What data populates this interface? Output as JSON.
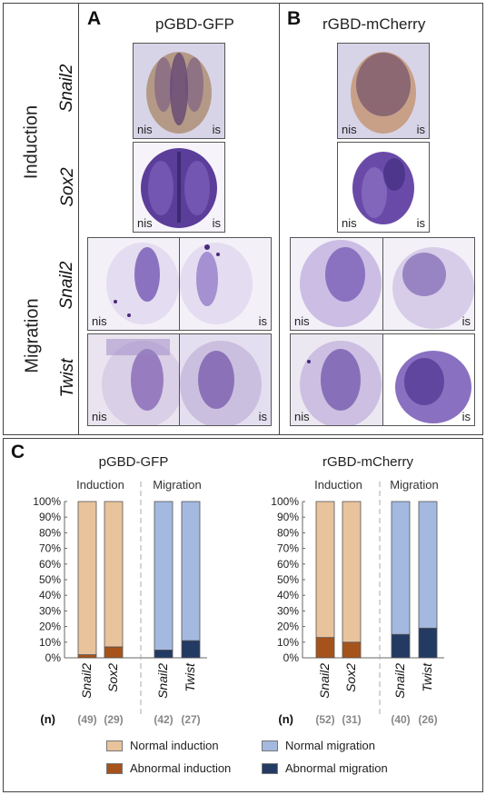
{
  "panels": {
    "A": {
      "letter": "A",
      "title": "pGBD-GFP"
    },
    "B": {
      "letter": "B",
      "title": "rGBD-mCherry"
    },
    "C": {
      "letter": "C"
    }
  },
  "rows": {
    "induction": "Induction",
    "migration": "Migration",
    "snail2": "Snail2",
    "sox2": "Sox2",
    "twist": "Twist"
  },
  "side_tags": {
    "nis": "nis",
    "is": "is"
  },
  "chart_data": [
    {
      "type": "bar",
      "title": "pGBD-GFP",
      "groups": [
        "Induction",
        "Migration"
      ],
      "categories": [
        "Snail2",
        "Sox2",
        "Snail2",
        "Twist"
      ],
      "n": [
        "(49)",
        "(29)",
        "(42)",
        "(27)"
      ],
      "series": [
        {
          "name": "Abnormal induction",
          "values": [
            2,
            7,
            null,
            null
          ]
        },
        {
          "name": "Normal induction",
          "values": [
            98,
            93,
            null,
            null
          ]
        },
        {
          "name": "Abnormal migration",
          "values": [
            null,
            null,
            5,
            11
          ]
        },
        {
          "name": "Normal migration",
          "values": [
            null,
            null,
            95,
            89
          ]
        }
      ],
      "ylim": [
        0,
        100
      ],
      "yticks": [
        "0%",
        "10%",
        "20%",
        "30%",
        "40%",
        "50%",
        "60%",
        "70%",
        "80%",
        "90%",
        "100%"
      ]
    },
    {
      "type": "bar",
      "title": "rGBD-mCherry",
      "groups": [
        "Induction",
        "Migration"
      ],
      "categories": [
        "Snail2",
        "Sox2",
        "Snail2",
        "Twist"
      ],
      "n": [
        "(52)",
        "(31)",
        "(40)",
        "(26)"
      ],
      "series": [
        {
          "name": "Abnormal induction",
          "values": [
            13,
            10,
            null,
            null
          ]
        },
        {
          "name": "Normal induction",
          "values": [
            87,
            90,
            null,
            null
          ]
        },
        {
          "name": "Abnormal migration",
          "values": [
            null,
            null,
            15,
            19
          ]
        },
        {
          "name": "Normal migration",
          "values": [
            null,
            null,
            85,
            81
          ]
        }
      ],
      "ylim": [
        0,
        100
      ],
      "yticks": [
        "0%",
        "10%",
        "20%",
        "30%",
        "40%",
        "50%",
        "60%",
        "70%",
        "80%",
        "90%",
        "100%"
      ]
    }
  ],
  "n_label": "(n)",
  "legend": [
    {
      "label": "Normal induction",
      "color": "#e8c39c"
    },
    {
      "label": "Normal migration",
      "color": "#a4b9e0"
    },
    {
      "label": "Abnormal induction",
      "color": "#a6531b"
    },
    {
      "label": "Abnormal migration",
      "color": "#233a63"
    }
  ],
  "colors": {
    "normal_induction": "#e8c39c",
    "abnormal_induction": "#a6531b",
    "normal_migration": "#a4b9e0",
    "abnormal_migration": "#233a63",
    "stain": "#5a3a9c"
  }
}
